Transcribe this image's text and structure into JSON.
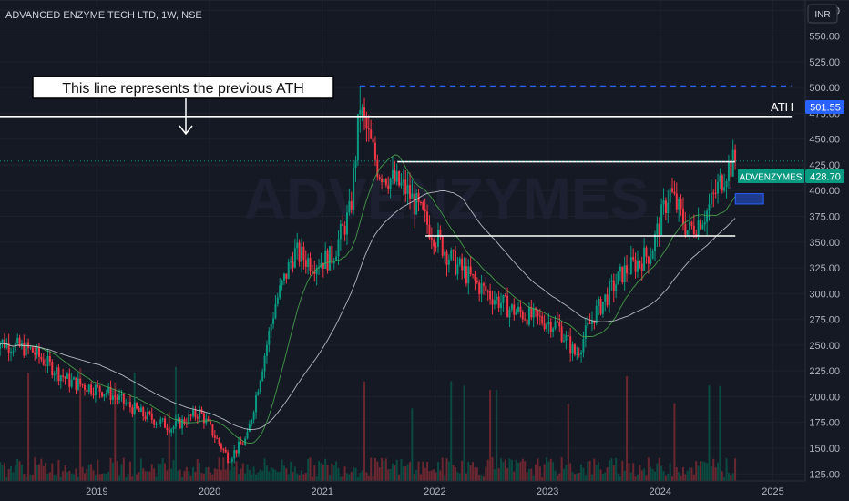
{
  "header": {
    "symbol_title": "ADVANCED ENZYME TECH LTD, 1W, NSE"
  },
  "currency_button": "INR",
  "watermark": "ADVENZYMES",
  "annotations": {
    "callout_text": "This line represents the previous ATH",
    "ath_label": "ATH"
  },
  "price_badges": {
    "ath": {
      "value": "501.55",
      "color": "#2962ff"
    },
    "last": {
      "symbol": "ADVENZYMES",
      "value": "428.70",
      "color": "#089981"
    }
  },
  "colors": {
    "up": "#089981",
    "down": "#f23645",
    "ma_short": "#4caf50",
    "ma_long": "#d1d4dc",
    "background": "#151924"
  },
  "chart_data": {
    "type": "candlestick",
    "y_axis": {
      "min": 112,
      "max": 600,
      "ticks": [
        125,
        150,
        175,
        200,
        225,
        250,
        275,
        300,
        325,
        350,
        375,
        400,
        425,
        450,
        475,
        500,
        525,
        550,
        575
      ]
    },
    "x_axis": {
      "start": "2018-02",
      "end": "2025-06",
      "tick_labels": [
        {
          "label": "2019",
          "date": "2019-01"
        },
        {
          "label": "2020",
          "date": "2020-01"
        },
        {
          "label": "2021",
          "date": "2021-01"
        },
        {
          "label": "2022",
          "date": "2022-01"
        },
        {
          "label": "2023",
          "date": "2023-01"
        },
        {
          "label": "2024",
          "date": "2024-01"
        },
        {
          "label": "2025",
          "date": "2025-01"
        }
      ]
    },
    "price_path": [
      [
        "2018-02",
        255
      ],
      [
        "2018-06",
        245
      ],
      [
        "2018-10",
        215
      ],
      [
        "2019-02",
        205
      ],
      [
        "2019-06",
        182
      ],
      [
        "2019-09",
        170
      ],
      [
        "2019-12",
        185
      ],
      [
        "2020-03",
        140
      ],
      [
        "2020-05",
        160
      ],
      [
        "2020-08",
        290
      ],
      [
        "2020-10",
        340
      ],
      [
        "2020-12",
        330
      ],
      [
        "2021-02",
        335
      ],
      [
        "2021-04",
        380
      ],
      [
        "2021-05",
        480
      ],
      [
        "2021-07",
        420
      ],
      [
        "2021-10",
        400
      ],
      [
        "2021-12",
        370
      ],
      [
        "2022-03",
        330
      ],
      [
        "2022-06",
        305
      ],
      [
        "2022-09",
        285
      ],
      [
        "2022-12",
        275
      ],
      [
        "2023-02",
        270
      ],
      [
        "2023-04",
        240
      ],
      [
        "2023-06",
        280
      ],
      [
        "2023-09",
        320
      ],
      [
        "2023-12",
        340
      ],
      [
        "2024-02",
        400
      ],
      [
        "2024-04",
        360
      ],
      [
        "2024-06",
        380
      ],
      [
        "2024-08",
        420
      ],
      [
        "2024-09",
        428.7
      ]
    ],
    "ath": 501.55,
    "last_price": 428.7,
    "horizontal_levels": [
      {
        "name": "previous-ath-line",
        "price": 472,
        "from": "2018-02",
        "to": "2025-03"
      },
      {
        "name": "resistance-line",
        "price": 428,
        "from": "2021-09",
        "to": "2024-09"
      },
      {
        "name": "support-line",
        "price": 356,
        "from": "2021-12",
        "to": "2024-09"
      }
    ],
    "ath_dashed_line": {
      "price": 501.55,
      "from": "2021-05",
      "to": "2025-03"
    },
    "target_box": {
      "price_top": 397,
      "price_bottom": 387,
      "from": "2024-09",
      "to": "2024-12"
    }
  }
}
